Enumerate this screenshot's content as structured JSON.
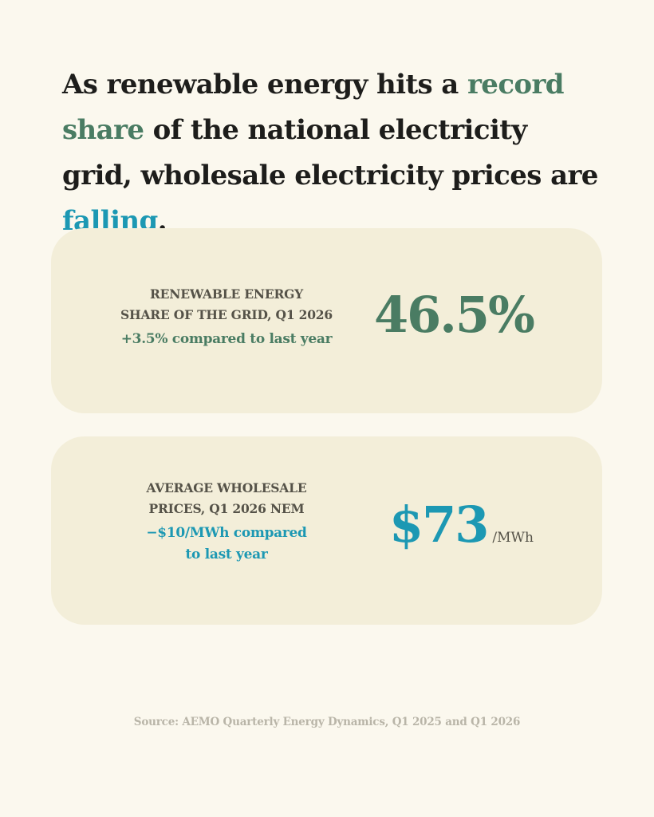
{
  "headline": {
    "part1": "As renewable energy hits a ",
    "highlight1": "record share",
    "part2": " of the national electricity grid, wholesale electricity prices are ",
    "highlight2": "falling",
    "part3": "."
  },
  "cards": [
    {
      "label_line1": "RENEWABLE ENERGY",
      "label_line2": "SHARE OF THE GRID, Q1 2026",
      "change_line1": "+3.5% compared to last year",
      "change_line2": "",
      "value": "46.5%",
      "unit": ""
    },
    {
      "label_line1": "AVERAGE WHOLESALE",
      "label_line2": "PRICES, Q1 2026 NEM",
      "change_line1": "−$10/MWh compared",
      "change_line2": "to last year",
      "value": "$73",
      "unit": "/MWh"
    }
  ],
  "source": "Source: AEMO Quarterly Energy Dynamics, Q1 2025 and Q1 2026",
  "colors": {
    "background": "#fbf8ee",
    "card": "#f3eed9",
    "green": "#4a7c63",
    "teal": "#1c98b3",
    "text": "#1d1d1b"
  }
}
